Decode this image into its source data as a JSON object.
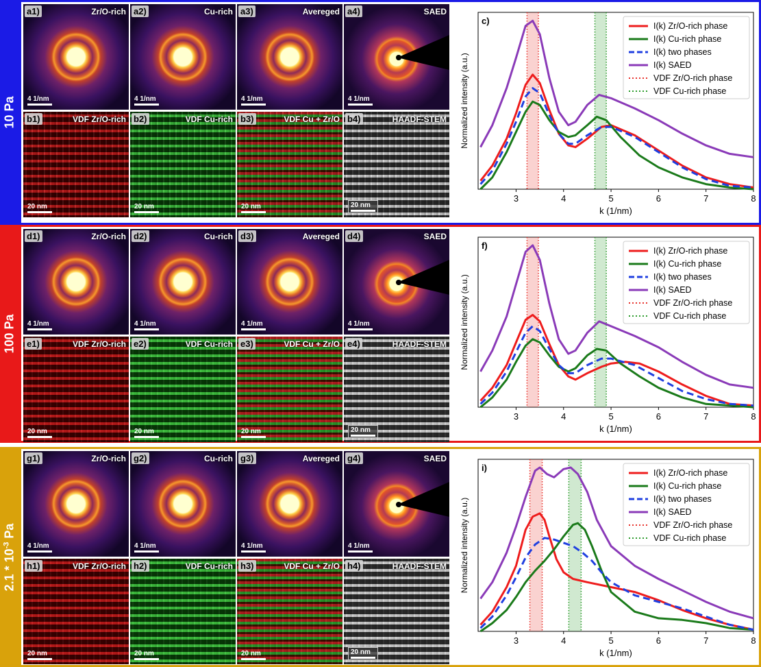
{
  "rows": [
    {
      "condition": "10 Pa",
      "condition_base": "",
      "condition_exp": "",
      "color": "#1b1be6",
      "panels_top": [
        {
          "tag": "a1)",
          "title": "Zr/O-rich",
          "scale": "4 1/nm"
        },
        {
          "tag": "a2)",
          "title": "Cu-rich",
          "scale": "4 1/nm"
        },
        {
          "tag": "a3)",
          "title": "Avereged",
          "scale": "4 1/nm"
        },
        {
          "tag": "a4)",
          "title": "SAED",
          "scale": "4 1/nm"
        }
      ],
      "panels_bottom": [
        {
          "tag": "b1)",
          "title": "VDF Zr/O-rich",
          "scale": "20 nm"
        },
        {
          "tag": "b2)",
          "title": "VDF Cu-rich",
          "scale": "20 nm"
        },
        {
          "tag": "b3)",
          "title": "VDF Cu + Zr/O",
          "scale": "20 nm"
        },
        {
          "tag": "b4)",
          "title": "HAADF-STEM",
          "scale": "20 nm"
        }
      ]
    },
    {
      "condition": "100 Pa",
      "condition_base": "",
      "condition_exp": "",
      "color": "#e81919",
      "panels_top": [
        {
          "tag": "d1)",
          "title": "Zr/O-rich",
          "scale": "4 1/nm"
        },
        {
          "tag": "d2)",
          "title": "Cu-rich",
          "scale": "4 1/nm"
        },
        {
          "tag": "d3)",
          "title": "Avereged",
          "scale": "4 1/nm"
        },
        {
          "tag": "d4)",
          "title": "SAED",
          "scale": "4 1/nm"
        }
      ],
      "panels_bottom": [
        {
          "tag": "e1)",
          "title": "VDF Zr/O-rich",
          "scale": "20 nm"
        },
        {
          "tag": "e2)",
          "title": "VDF Cu-rich",
          "scale": "20 nm"
        },
        {
          "tag": "e3)",
          "title": "VDF Cu + Zr/O",
          "scale": "20 nm"
        },
        {
          "tag": "e4)",
          "title": "HAADF-STEM",
          "scale": "20 nm"
        }
      ]
    },
    {
      "condition": "",
      "condition_base": "2.1 * 10",
      "condition_exp": "-3",
      "condition_unit": " Pa",
      "color": "#d9a20b",
      "panels_top": [
        {
          "tag": "g1)",
          "title": "Zr/O-rich",
          "scale": "4 1/nm"
        },
        {
          "tag": "g2)",
          "title": "Cu-rich",
          "scale": "4 1/nm"
        },
        {
          "tag": "g3)",
          "title": "Avereged",
          "scale": "4 1/nm"
        },
        {
          "tag": "g4)",
          "title": "SAED",
          "scale": "4 1/nm"
        }
      ],
      "panels_bottom": [
        {
          "tag": "h1)",
          "title": "VDF Zr/O-rich",
          "scale": "20 nm"
        },
        {
          "tag": "h2)",
          "title": "VDF Cu-rich",
          "scale": "20 nm"
        },
        {
          "tag": "h3)",
          "title": "VDF Cu + Zr/O",
          "scale": "20 nm"
        },
        {
          "tag": "h4)",
          "title": "HAADF-STEM",
          "scale": "20 nm"
        }
      ]
    }
  ],
  "chart_data": [
    {
      "type": "line",
      "panel_label": "c)",
      "xlabel": "k (1/nm)",
      "ylabel": "Normalized intensity (a.u.)",
      "xlim": [
        2.2,
        8
      ],
      "xticks": [
        3,
        4,
        5,
        6,
        7,
        8
      ],
      "legend_position": "top-right",
      "vdf_bands": [
        {
          "name": "VDF Zr/O-rich phase",
          "range": [
            3.23,
            3.47
          ],
          "color": "#e8302a"
        },
        {
          "name": "VDF Cu-rich phase",
          "range": [
            4.66,
            4.9
          ],
          "color": "#2a9a2a"
        }
      ],
      "series": [
        {
          "name": "I(k) Zr/O-rich phase",
          "color": "#ee1c1c",
          "style": "solid",
          "x": [
            2.25,
            2.5,
            2.8,
            3.0,
            3.2,
            3.35,
            3.5,
            3.7,
            3.9,
            4.1,
            4.25,
            4.5,
            4.8,
            5.0,
            5.5,
            6.0,
            6.5,
            7.0,
            7.5,
            8.0
          ],
          "y": [
            0.05,
            0.14,
            0.3,
            0.45,
            0.62,
            0.68,
            0.63,
            0.47,
            0.33,
            0.26,
            0.25,
            0.3,
            0.37,
            0.38,
            0.32,
            0.23,
            0.14,
            0.07,
            0.03,
            0.01
          ]
        },
        {
          "name": "I(k) Cu-rich phase",
          "color": "#1a7a1a",
          "style": "solid",
          "x": [
            2.25,
            2.5,
            2.8,
            3.0,
            3.2,
            3.35,
            3.5,
            3.7,
            3.9,
            4.1,
            4.25,
            4.5,
            4.7,
            4.9,
            5.2,
            5.6,
            6.0,
            6.5,
            7.0,
            7.5,
            8.0
          ],
          "y": [
            0.0,
            0.07,
            0.22,
            0.34,
            0.46,
            0.52,
            0.5,
            0.41,
            0.34,
            0.31,
            0.32,
            0.38,
            0.43,
            0.41,
            0.31,
            0.2,
            0.13,
            0.07,
            0.03,
            0.01,
            0.0
          ]
        },
        {
          "name": "I(k) two phases",
          "color": "#1f3fe0",
          "style": "dashed",
          "x": [
            2.25,
            2.5,
            2.8,
            3.0,
            3.2,
            3.35,
            3.5,
            3.7,
            3.9,
            4.1,
            4.25,
            4.5,
            4.8,
            5.0,
            5.5,
            6.0,
            6.5,
            7.0,
            7.5,
            8.0
          ],
          "y": [
            0.03,
            0.11,
            0.27,
            0.4,
            0.55,
            0.6,
            0.57,
            0.44,
            0.33,
            0.27,
            0.27,
            0.32,
            0.37,
            0.37,
            0.31,
            0.22,
            0.13,
            0.06,
            0.02,
            0.01
          ]
        },
        {
          "name": "I(k) SAED",
          "color": "#8a3ab8",
          "style": "solid",
          "x": [
            2.25,
            2.5,
            2.8,
            3.0,
            3.2,
            3.35,
            3.5,
            3.7,
            3.9,
            4.1,
            4.25,
            4.5,
            4.75,
            5.0,
            5.5,
            6.0,
            6.5,
            7.0,
            7.5,
            8.0
          ],
          "y": [
            0.25,
            0.38,
            0.6,
            0.78,
            0.97,
            1.0,
            0.92,
            0.66,
            0.46,
            0.38,
            0.4,
            0.5,
            0.56,
            0.54,
            0.48,
            0.41,
            0.33,
            0.26,
            0.21,
            0.19
          ]
        },
        {
          "name": "VDF Zr/O-rich phase",
          "color": "#e8302a",
          "style": "dotted",
          "x": [],
          "y": []
        },
        {
          "name": "VDF Cu-rich phase",
          "color": "#2a9a2a",
          "style": "dotted",
          "x": [],
          "y": []
        }
      ]
    },
    {
      "type": "line",
      "panel_label": "f)",
      "xlabel": "k (1/nm)",
      "ylabel": "Normalized intensity (a.u.)",
      "xlim": [
        2.2,
        8
      ],
      "xticks": [
        3,
        4,
        5,
        6,
        7,
        8
      ],
      "legend_position": "top-right",
      "vdf_bands": [
        {
          "name": "VDF Zr/O-rich phase",
          "range": [
            3.23,
            3.47
          ],
          "color": "#e8302a"
        },
        {
          "name": "VDF Cu-rich phase",
          "range": [
            4.66,
            4.9
          ],
          "color": "#2a9a2a"
        }
      ],
      "series": [
        {
          "name": "I(k) Zr/O-rich phase",
          "color": "#ee1c1c",
          "style": "solid",
          "x": [
            2.25,
            2.5,
            2.8,
            3.0,
            3.2,
            3.35,
            3.5,
            3.7,
            3.9,
            4.1,
            4.25,
            4.5,
            4.8,
            5.0,
            5.3,
            5.6,
            6.0,
            6.5,
            7.0,
            7.5,
            8.0
          ],
          "y": [
            0.04,
            0.12,
            0.26,
            0.4,
            0.54,
            0.57,
            0.53,
            0.39,
            0.26,
            0.19,
            0.17,
            0.21,
            0.25,
            0.27,
            0.28,
            0.27,
            0.22,
            0.14,
            0.07,
            0.02,
            0.01
          ]
        },
        {
          "name": "I(k) Cu-rich phase",
          "color": "#1a7a1a",
          "style": "solid",
          "x": [
            2.25,
            2.5,
            2.8,
            3.0,
            3.2,
            3.35,
            3.5,
            3.7,
            3.9,
            4.1,
            4.25,
            4.5,
            4.7,
            4.9,
            5.2,
            5.6,
            6.0,
            6.5,
            7.0,
            7.5,
            8.0
          ],
          "y": [
            0.0,
            0.06,
            0.17,
            0.28,
            0.38,
            0.42,
            0.4,
            0.32,
            0.25,
            0.22,
            0.24,
            0.32,
            0.36,
            0.35,
            0.27,
            0.19,
            0.12,
            0.06,
            0.02,
            0.01,
            0.0
          ]
        },
        {
          "name": "I(k) two phases",
          "color": "#1f3fe0",
          "style": "dashed",
          "x": [
            2.25,
            2.5,
            2.8,
            3.0,
            3.2,
            3.35,
            3.5,
            3.7,
            3.9,
            4.1,
            4.25,
            4.5,
            4.8,
            5.0,
            5.5,
            6.0,
            6.5,
            7.0,
            7.5,
            8.0
          ],
          "y": [
            0.02,
            0.09,
            0.22,
            0.34,
            0.46,
            0.5,
            0.47,
            0.36,
            0.26,
            0.21,
            0.21,
            0.26,
            0.3,
            0.3,
            0.26,
            0.18,
            0.1,
            0.05,
            0.02,
            0.01
          ]
        },
        {
          "name": "I(k) SAED",
          "color": "#8a3ab8",
          "style": "solid",
          "x": [
            2.25,
            2.5,
            2.8,
            3.0,
            3.2,
            3.35,
            3.5,
            3.7,
            3.9,
            4.1,
            4.25,
            4.5,
            4.75,
            5.0,
            5.5,
            6.0,
            6.5,
            7.0,
            7.5,
            8.0
          ],
          "y": [
            0.22,
            0.35,
            0.56,
            0.76,
            0.96,
            1.0,
            0.91,
            0.64,
            0.42,
            0.33,
            0.35,
            0.46,
            0.53,
            0.5,
            0.44,
            0.37,
            0.28,
            0.2,
            0.14,
            0.12
          ]
        },
        {
          "name": "VDF Zr/O-rich phase",
          "color": "#e8302a",
          "style": "dotted",
          "x": [],
          "y": []
        },
        {
          "name": "VDF Cu-rich phase",
          "color": "#2a9a2a",
          "style": "dotted",
          "x": [],
          "y": []
        }
      ]
    },
    {
      "type": "line",
      "panel_label": "i)",
      "xlabel": "k (1/nm)",
      "ylabel": "Normalized intensity (a.u.)",
      "xlim": [
        2.2,
        8
      ],
      "xticks": [
        3,
        4,
        5,
        6,
        7,
        8
      ],
      "legend_position": "top-right",
      "vdf_bands": [
        {
          "name": "VDF Zr/O-rich phase",
          "range": [
            3.29,
            3.55
          ],
          "color": "#e8302a"
        },
        {
          "name": "VDF Cu-rich phase",
          "range": [
            4.11,
            4.37
          ],
          "color": "#2a9a2a"
        }
      ],
      "series": [
        {
          "name": "I(k) Zr/O-rich phase",
          "color": "#ee1c1c",
          "style": "solid",
          "x": [
            2.25,
            2.5,
            2.8,
            3.0,
            3.2,
            3.35,
            3.5,
            3.6,
            3.7,
            3.85,
            4.0,
            4.2,
            4.5,
            5.0,
            5.5,
            6.0,
            6.5,
            7.0,
            7.5,
            8.0
          ],
          "y": [
            0.04,
            0.12,
            0.27,
            0.4,
            0.62,
            0.7,
            0.72,
            0.68,
            0.58,
            0.44,
            0.36,
            0.32,
            0.3,
            0.27,
            0.24,
            0.19,
            0.13,
            0.08,
            0.04,
            0.01
          ]
        },
        {
          "name": "I(k) Cu-rich phase",
          "color": "#1a7a1a",
          "style": "solid",
          "x": [
            2.25,
            2.5,
            2.8,
            3.0,
            3.2,
            3.4,
            3.6,
            3.8,
            4.0,
            4.2,
            4.3,
            4.45,
            4.6,
            4.8,
            5.0,
            5.5,
            6.0,
            6.5,
            7.0,
            7.5,
            8.0
          ],
          "y": [
            0.0,
            0.05,
            0.13,
            0.21,
            0.3,
            0.37,
            0.43,
            0.5,
            0.58,
            0.65,
            0.66,
            0.62,
            0.52,
            0.37,
            0.24,
            0.12,
            0.08,
            0.07,
            0.05,
            0.02,
            0.01
          ]
        },
        {
          "name": "I(k) two phases",
          "color": "#1f3fe0",
          "style": "dashed",
          "x": [
            2.25,
            2.5,
            2.8,
            3.0,
            3.2,
            3.4,
            3.6,
            3.8,
            4.0,
            4.2,
            4.4,
            4.6,
            4.8,
            5.0,
            5.5,
            6.0,
            6.5,
            7.0,
            7.5,
            8.0
          ],
          "y": [
            0.02,
            0.09,
            0.22,
            0.33,
            0.45,
            0.53,
            0.57,
            0.56,
            0.54,
            0.52,
            0.48,
            0.43,
            0.36,
            0.3,
            0.22,
            0.18,
            0.14,
            0.09,
            0.04,
            0.01
          ]
        },
        {
          "name": "I(k) SAED",
          "color": "#8a3ab8",
          "style": "solid",
          "x": [
            2.25,
            2.5,
            2.8,
            3.0,
            3.2,
            3.4,
            3.5,
            3.65,
            3.8,
            4.0,
            4.15,
            4.3,
            4.5,
            4.7,
            5.0,
            5.5,
            6.0,
            6.5,
            7.0,
            7.5,
            8.0
          ],
          "y": [
            0.2,
            0.3,
            0.48,
            0.64,
            0.82,
            0.98,
            1.0,
            0.96,
            0.94,
            0.99,
            1.0,
            0.96,
            0.85,
            0.68,
            0.52,
            0.4,
            0.32,
            0.25,
            0.18,
            0.12,
            0.08
          ]
        },
        {
          "name": "VDF Zr/O-rich phase",
          "color": "#e8302a",
          "style": "dotted",
          "x": [],
          "y": []
        },
        {
          "name": "VDF Cu-rich phase",
          "color": "#2a9a2a",
          "style": "dotted",
          "x": [],
          "y": []
        }
      ]
    }
  ]
}
